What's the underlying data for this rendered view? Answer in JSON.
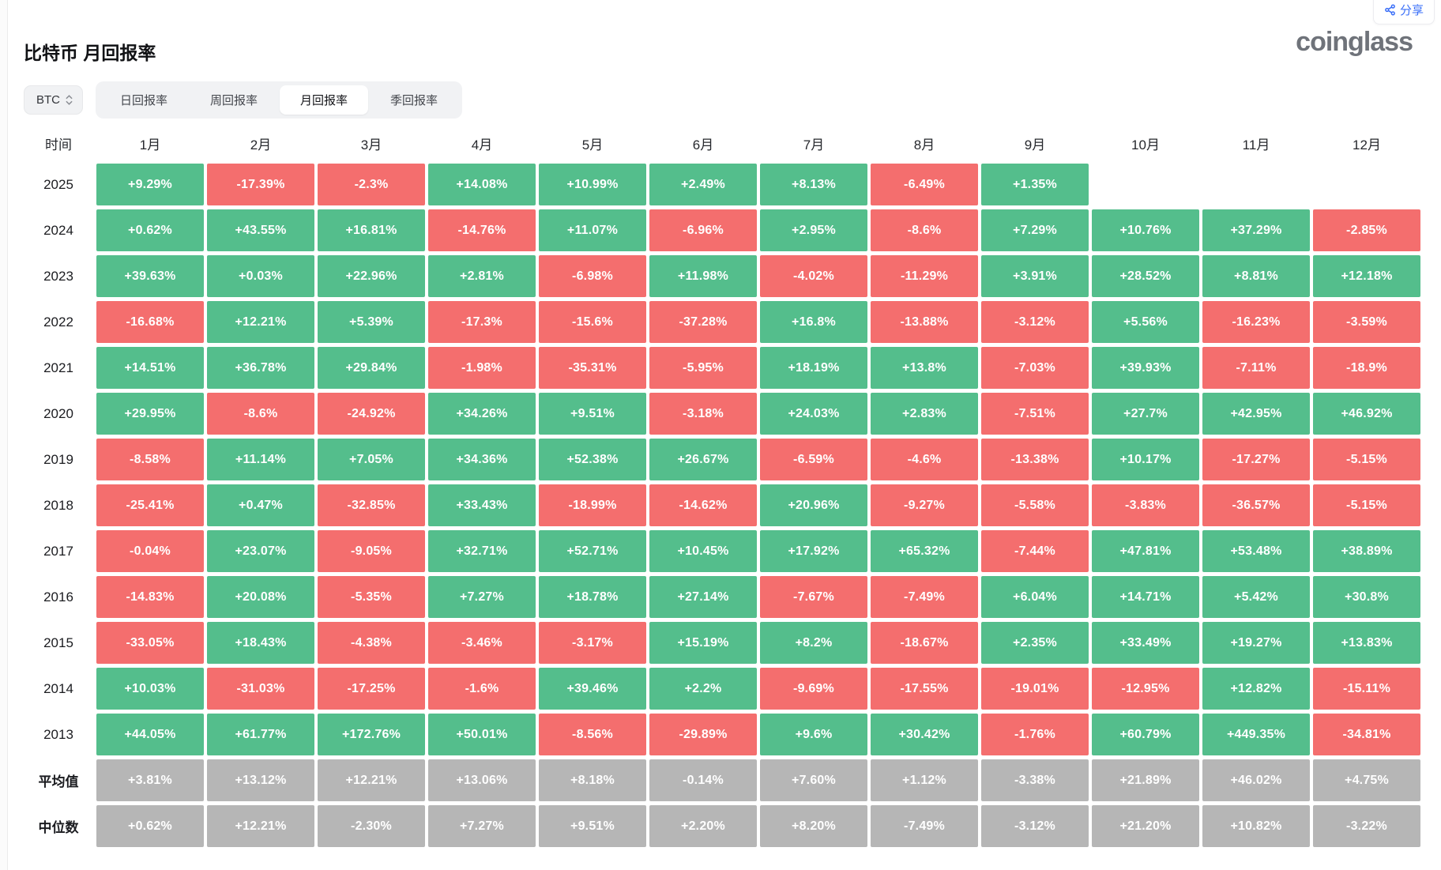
{
  "colors": {
    "positive": "#54be8c",
    "negative": "#f46e6e",
    "neutral": "#b6b6b6",
    "share": "#3a6ff8",
    "logo": "#6f737a"
  },
  "header": {
    "title": "比特币 月回报率",
    "share_label": "分享",
    "logo_text": "coinglass"
  },
  "controls": {
    "coin_select": {
      "value": "BTC"
    },
    "tabs": [
      {
        "label": "日回报率",
        "active": false
      },
      {
        "label": "周回报率",
        "active": false
      },
      {
        "label": "月回报率",
        "active": true
      },
      {
        "label": "季回报率",
        "active": false
      }
    ]
  },
  "chart_data": {
    "type": "heatmap",
    "title": "比特币 月回报率",
    "unit": "percent monthly return",
    "legend_hint": "green = positive, red = negative, gray = summary rows",
    "columns": [
      "时间",
      "1月",
      "2月",
      "3月",
      "4月",
      "5月",
      "6月",
      "7月",
      "8月",
      "9月",
      "10月",
      "11月",
      "12月"
    ],
    "rows": [
      {
        "label": "2025",
        "kind": "year",
        "values": [
          "+9.29%",
          "-17.39%",
          "-2.3%",
          "+14.08%",
          "+10.99%",
          "+2.49%",
          "+8.13%",
          "-6.49%",
          "+1.35%",
          "",
          "",
          ""
        ]
      },
      {
        "label": "2024",
        "kind": "year",
        "values": [
          "+0.62%",
          "+43.55%",
          "+16.81%",
          "-14.76%",
          "+11.07%",
          "-6.96%",
          "+2.95%",
          "-8.6%",
          "+7.29%",
          "+10.76%",
          "+37.29%",
          "-2.85%"
        ]
      },
      {
        "label": "2023",
        "kind": "year",
        "values": [
          "+39.63%",
          "+0.03%",
          "+22.96%",
          "+2.81%",
          "-6.98%",
          "+11.98%",
          "-4.02%",
          "-11.29%",
          "+3.91%",
          "+28.52%",
          "+8.81%",
          "+12.18%"
        ]
      },
      {
        "label": "2022",
        "kind": "year",
        "values": [
          "-16.68%",
          "+12.21%",
          "+5.39%",
          "-17.3%",
          "-15.6%",
          "-37.28%",
          "+16.8%",
          "-13.88%",
          "-3.12%",
          "+5.56%",
          "-16.23%",
          "-3.59%"
        ]
      },
      {
        "label": "2021",
        "kind": "year",
        "values": [
          "+14.51%",
          "+36.78%",
          "+29.84%",
          "-1.98%",
          "-35.31%",
          "-5.95%",
          "+18.19%",
          "+13.8%",
          "-7.03%",
          "+39.93%",
          "-7.11%",
          "-18.9%"
        ]
      },
      {
        "label": "2020",
        "kind": "year",
        "values": [
          "+29.95%",
          "-8.6%",
          "-24.92%",
          "+34.26%",
          "+9.51%",
          "-3.18%",
          "+24.03%",
          "+2.83%",
          "-7.51%",
          "+27.7%",
          "+42.95%",
          "+46.92%"
        ]
      },
      {
        "label": "2019",
        "kind": "year",
        "values": [
          "-8.58%",
          "+11.14%",
          "+7.05%",
          "+34.36%",
          "+52.38%",
          "+26.67%",
          "-6.59%",
          "-4.6%",
          "-13.38%",
          "+10.17%",
          "-17.27%",
          "-5.15%"
        ]
      },
      {
        "label": "2018",
        "kind": "year",
        "values": [
          "-25.41%",
          "+0.47%",
          "-32.85%",
          "+33.43%",
          "-18.99%",
          "-14.62%",
          "+20.96%",
          "-9.27%",
          "-5.58%",
          "-3.83%",
          "-36.57%",
          "-5.15%"
        ]
      },
      {
        "label": "2017",
        "kind": "year",
        "values": [
          "-0.04%",
          "+23.07%",
          "-9.05%",
          "+32.71%",
          "+52.71%",
          "+10.45%",
          "+17.92%",
          "+65.32%",
          "-7.44%",
          "+47.81%",
          "+53.48%",
          "+38.89%"
        ]
      },
      {
        "label": "2016",
        "kind": "year",
        "values": [
          "-14.83%",
          "+20.08%",
          "-5.35%",
          "+7.27%",
          "+18.78%",
          "+27.14%",
          "-7.67%",
          "-7.49%",
          "+6.04%",
          "+14.71%",
          "+5.42%",
          "+30.8%"
        ]
      },
      {
        "label": "2015",
        "kind": "year",
        "values": [
          "-33.05%",
          "+18.43%",
          "-4.38%",
          "-3.46%",
          "-3.17%",
          "+15.19%",
          "+8.2%",
          "-18.67%",
          "+2.35%",
          "+33.49%",
          "+19.27%",
          "+13.83%"
        ]
      },
      {
        "label": "2014",
        "kind": "year",
        "values": [
          "+10.03%",
          "-31.03%",
          "-17.25%",
          "-1.6%",
          "+39.46%",
          "+2.2%",
          "-9.69%",
          "-17.55%",
          "-19.01%",
          "-12.95%",
          "+12.82%",
          "-15.11%"
        ]
      },
      {
        "label": "2013",
        "kind": "year",
        "values": [
          "+44.05%",
          "+61.77%",
          "+172.76%",
          "+50.01%",
          "-8.56%",
          "-29.89%",
          "+9.6%",
          "+30.42%",
          "-1.76%",
          "+60.79%",
          "+449.35%",
          "-34.81%"
        ]
      },
      {
        "label": "平均值",
        "kind": "summary",
        "values": [
          "+3.81%",
          "+13.12%",
          "+12.21%",
          "+13.06%",
          "+8.18%",
          "-0.14%",
          "+7.60%",
          "+1.12%",
          "-3.38%",
          "+21.89%",
          "+46.02%",
          "+4.75%"
        ]
      },
      {
        "label": "中位数",
        "kind": "summary",
        "values": [
          "+0.62%",
          "+12.21%",
          "-2.30%",
          "+7.27%",
          "+9.51%",
          "+2.20%",
          "+8.20%",
          "-7.49%",
          "-3.12%",
          "+21.20%",
          "+10.82%",
          "-3.22%"
        ]
      }
    ]
  }
}
